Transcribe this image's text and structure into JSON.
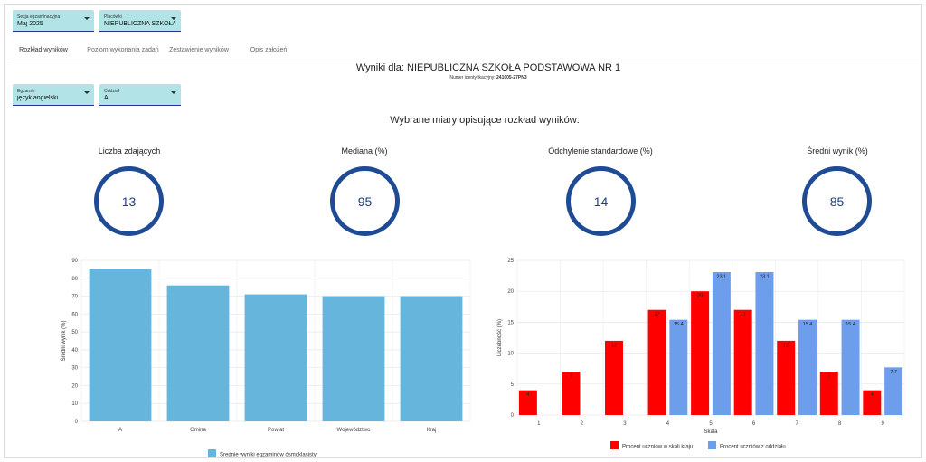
{
  "filters": {
    "session": {
      "label": "Sesja egzaminacyjna",
      "value": "Maj 2025"
    },
    "school": {
      "label": "Placówki",
      "value": "NIEPUBLICZNA SZKOŁA..."
    },
    "exam": {
      "label": "Egzamin",
      "value": "język angielski"
    },
    "class": {
      "label": "Oddział",
      "value": "A"
    }
  },
  "tabs": [
    {
      "label": "Rozkład wyników",
      "active": true
    },
    {
      "label": "Poziom wykonania zadań",
      "active": false
    },
    {
      "label": "Zestawienie wyników",
      "active": false
    },
    {
      "label": "Opis założeń",
      "active": false
    }
  ],
  "header": {
    "title": "Wyniki dla: NIEPUBLICZNA SZKOŁA PODSTAWOWA NR 1",
    "id_label": "Numer identyfikacyjny:",
    "id_value": "241005-27PN3"
  },
  "section_title": "Wybrane miary opisujące rozkład wyników:",
  "kpis": [
    {
      "label": "Liczba zdających",
      "value": "13"
    },
    {
      "label": "Mediana (%)",
      "value": "95"
    },
    {
      "label": "Odchylenie standardowe (%)",
      "value": "14"
    },
    {
      "label": "Średni wynik (%)",
      "value": "85"
    }
  ],
  "colors": {
    "accent_select": "#b2e3e6",
    "kpi_ring": "#1f4a94",
    "bar_blue": "#66b5dc",
    "bar_red": "#ff0000",
    "bar_lightblue": "#6d9eeb"
  },
  "chart_data": [
    {
      "type": "bar",
      "categories": [
        "A",
        "Gmina",
        "Powiat",
        "Województwo",
        "Kraj"
      ],
      "series": [
        {
          "name": "Średnie wyniki egzaminów ósmoklasisty",
          "values": [
            85,
            76,
            71,
            70,
            70
          ]
        }
      ],
      "ylabel": "Średni wynik (%)",
      "xlabel": "",
      "ylim": [
        0,
        90
      ],
      "yticks": [
        0,
        10,
        20,
        30,
        40,
        50,
        60,
        70,
        80,
        90
      ],
      "grid": true,
      "legend": "bottom"
    },
    {
      "type": "bar",
      "categories": [
        "1",
        "2",
        "3",
        "4",
        "5",
        "6",
        "7",
        "8",
        "9"
      ],
      "series": [
        {
          "name": "Procent uczniów w skali kraju",
          "values": [
            4,
            7,
            12,
            17,
            20,
            17,
            12,
            7,
            4
          ],
          "labels": [
            "4",
            "7",
            "12",
            "17",
            "20",
            "17",
            "12",
            "7",
            "4"
          ]
        },
        {
          "name": "Procent uczniów z oddziału",
          "values": [
            0,
            0,
            0,
            15.4,
            23.1,
            23.1,
            15.4,
            15.4,
            7.7
          ],
          "labels": [
            "",
            "",
            "",
            "15.4",
            "23.1",
            "23.1",
            "15.4",
            "15.4",
            "7.7"
          ]
        }
      ],
      "xlabel": "Skala",
      "ylabel": "Liczebność (%)",
      "ylim": [
        0,
        25
      ],
      "yticks": [
        0,
        5,
        10,
        15,
        20,
        25
      ],
      "grid": true,
      "legend": "bottom"
    }
  ]
}
